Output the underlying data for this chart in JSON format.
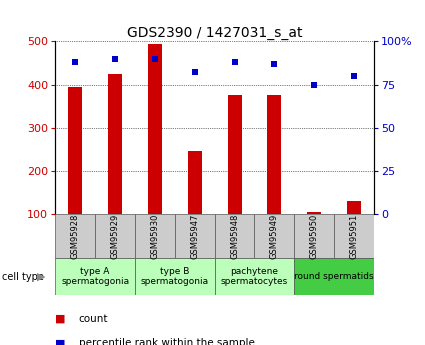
{
  "title": "GDS2390 / 1427031_s_at",
  "samples": [
    "GSM95928",
    "GSM95929",
    "GSM95930",
    "GSM95947",
    "GSM95948",
    "GSM95949",
    "GSM95950",
    "GSM95951"
  ],
  "counts": [
    395,
    425,
    495,
    245,
    375,
    375,
    105,
    130
  ],
  "percentiles": [
    88,
    90,
    90,
    82,
    88,
    87,
    75,
    80
  ],
  "ylim_left": [
    100,
    500
  ],
  "ylim_right": [
    0,
    100
  ],
  "yticks_left": [
    100,
    200,
    300,
    400,
    500
  ],
  "yticks_right": [
    0,
    25,
    50,
    75,
    100
  ],
  "bar_color": "#cc0000",
  "dot_color": "#0000cc",
  "cell_type_configs": [
    {
      "label": "type A\nspermatogonia",
      "start": 0,
      "end": 2,
      "color": "#bbffbb"
    },
    {
      "label": "type B\nspermatogonia",
      "start": 2,
      "end": 4,
      "color": "#bbffbb"
    },
    {
      "label": "pachytene\nspermatocytes",
      "start": 4,
      "end": 6,
      "color": "#bbffbb"
    },
    {
      "label": "round spermatids",
      "start": 6,
      "end": 8,
      "color": "#44cc44"
    }
  ],
  "legend_count_label": "count",
  "legend_percentile_label": "percentile rank within the sample",
  "cell_type_label": "cell type",
  "sample_box_color": "#cccccc",
  "title_fontsize": 10,
  "tick_fontsize": 8,
  "sample_fontsize": 6,
  "celltype_fontsize": 6.5,
  "legend_fontsize": 7.5
}
